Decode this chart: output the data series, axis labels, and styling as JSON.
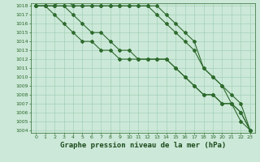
{
  "title": "Graphe pression niveau de la mer (hPa)",
  "xlabel_hours": [
    0,
    1,
    2,
    3,
    4,
    5,
    6,
    7,
    8,
    9,
    10,
    11,
    12,
    13,
    14,
    15,
    16,
    17,
    18,
    19,
    20,
    21,
    22,
    23
  ],
  "line1": [
    1018,
    1018,
    1018,
    1019,
    1018,
    1018,
    1018,
    1018,
    1018,
    1018,
    1018,
    1018,
    1018,
    1018,
    1017,
    1016,
    1015,
    1014,
    1011,
    1010,
    1009,
    1007,
    1005,
    1004
  ],
  "line2": [
    1018,
    1018,
    1018,
    1018,
    1018,
    1018,
    1018,
    1018,
    1018,
    1018,
    1018,
    1018,
    1018,
    1017,
    1016,
    1015,
    1014,
    1013,
    1011,
    1010,
    1009,
    1008,
    1007,
    1004
  ],
  "line3": [
    1018,
    1018,
    1018,
    1018,
    1017,
    1016,
    1015,
    1015,
    1014,
    1013,
    1013,
    1012,
    1012,
    1012,
    1012,
    1011,
    1010,
    1009,
    1008,
    1008,
    1007,
    1007,
    1006,
    1004
  ],
  "line4": [
    1018,
    1018,
    1017,
    1016,
    1015,
    1014,
    1014,
    1013,
    1013,
    1012,
    1012,
    1012,
    1012,
    1012,
    1012,
    1011,
    1010,
    1009,
    1008,
    1008,
    1007,
    1007,
    1006,
    1004
  ],
  "line_color": "#2d6a2d",
  "bg_color": "#cce8d8",
  "grid_color": "#99ccb0",
  "ylim_min": 1004,
  "ylim_max": 1018,
  "title_color": "#1a4a1a",
  "title_fontsize": 6.5,
  "marker": "D",
  "marker_size": 2.0,
  "linewidth": 0.8
}
